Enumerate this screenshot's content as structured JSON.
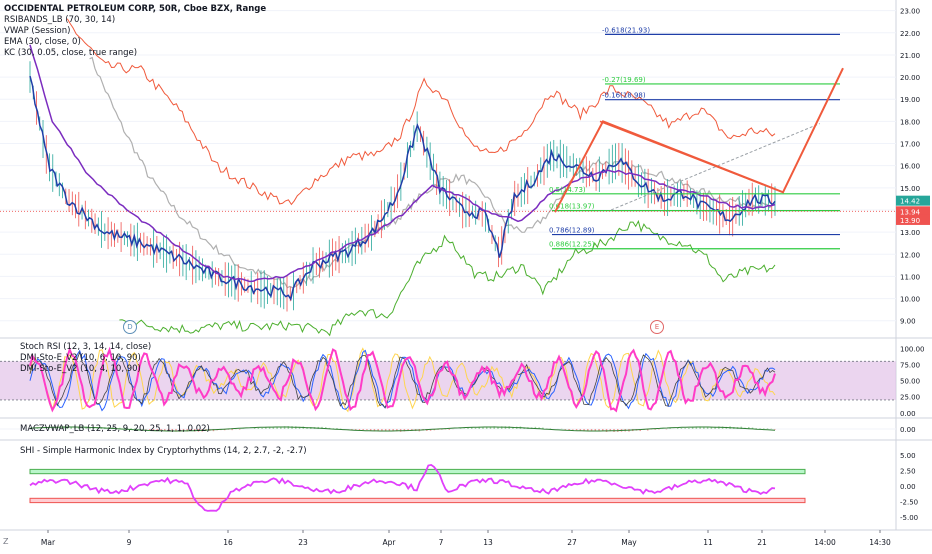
{
  "legend": {
    "title": "OCCIDENTAL PETROLEUM CORP, 50R, Cboe BZX, Range",
    "indicators": [
      "RSIBANDS_LB (70, 30, 14)",
      "VWAP (Session)",
      "EMA (30, close, 0)",
      "KC (30, 0.05, close, true range)"
    ]
  },
  "markers": [
    "D",
    "E"
  ],
  "axis_corner": "Z",
  "colors": {
    "price": "#1f3ea8",
    "up": "#26a69a",
    "down": "#ef5350",
    "rsi_upper": "#f05a3c",
    "rsi_lower": "#4caf2f",
    "vwap": "#7b2cbf",
    "ema": "#b0b0b0",
    "pattern": "#f05a3c",
    "fib_blue": "#1f3ea8",
    "fib_green": "#2ecc40",
    "stoch_k": "#ff3cc7",
    "stoch_d": "#2962ff",
    "dmi": "#ffd54f",
    "band_fill": "#e1bee7",
    "shi": "#e040fb"
  },
  "price_label_last": "14.42",
  "price_label_mid": "13.94",
  "price_label_low": "13.90",
  "main_chart": {
    "type": "line",
    "title": "OCCIDENTAL PETROLEUM CORP, 50R, Cboe BZX, Range",
    "yticks": [
      "23.00",
      "22.00",
      "21.00",
      "20.00",
      "19.00",
      "18.00",
      "17.00",
      "16.00",
      "15.00",
      "14.00",
      "13.00",
      "12.00",
      "11.00",
      "10.00",
      "9.00"
    ],
    "y_range": [
      8.4,
      23.3
    ],
    "price_path": [
      [
        0,
        20.0
      ],
      [
        0.025,
        16.0
      ],
      [
        0.05,
        14.5
      ],
      [
        0.1,
        13.0
      ],
      [
        0.15,
        12.5
      ],
      [
        0.2,
        11.8
      ],
      [
        0.25,
        11.0
      ],
      [
        0.3,
        10.5
      ],
      [
        0.35,
        10.2
      ],
      [
        0.38,
        11.5
      ],
      [
        0.43,
        12.2
      ],
      [
        0.46,
        13.0
      ],
      [
        0.49,
        14.5
      ],
      [
        0.5,
        15.5
      ],
      [
        0.52,
        17.8
      ],
      [
        0.55,
        15.0
      ],
      [
        0.58,
        14.0
      ],
      [
        0.61,
        13.8
      ],
      [
        0.63,
        12.0
      ],
      [
        0.65,
        14.5
      ],
      [
        0.68,
        15.5
      ],
      [
        0.7,
        16.5
      ],
      [
        0.73,
        16.0
      ],
      [
        0.76,
        15.5
      ],
      [
        0.79,
        16.3
      ],
      [
        0.82,
        15.2
      ],
      [
        0.85,
        14.5
      ],
      [
        0.88,
        14.8
      ],
      [
        0.9,
        14.2
      ],
      [
        0.94,
        13.6
      ],
      [
        0.97,
        14.5
      ],
      [
        1.0,
        14.4
      ]
    ],
    "rsi_upper_path": [
      [
        0.05,
        22.5
      ],
      [
        0.1,
        20.5
      ],
      [
        0.15,
        20.3
      ],
      [
        0.2,
        18.5
      ],
      [
        0.25,
        16.0
      ],
      [
        0.3,
        15.0
      ],
      [
        0.35,
        14.2
      ],
      [
        0.38,
        15.3
      ],
      [
        0.43,
        16.4
      ],
      [
        0.47,
        16.5
      ],
      [
        0.5,
        17.5
      ],
      [
        0.53,
        19.8
      ],
      [
        0.56,
        19.0
      ],
      [
        0.59,
        17.0
      ],
      [
        0.62,
        16.4
      ],
      [
        0.66,
        17.4
      ],
      [
        0.7,
        19.4
      ],
      [
        0.74,
        18.3
      ],
      [
        0.78,
        19.5
      ],
      [
        0.82,
        18.9
      ],
      [
        0.86,
        17.8
      ],
      [
        0.9,
        18.6
      ],
      [
        0.94,
        17.2
      ],
      [
        0.97,
        17.6
      ],
      [
        1.0,
        17.4
      ]
    ],
    "rsi_lower_path": [
      [
        0.12,
        9.0
      ],
      [
        0.18,
        8.7
      ],
      [
        0.22,
        8.6
      ],
      [
        0.26,
        8.8
      ],
      [
        0.3,
        8.7
      ],
      [
        0.35,
        8.8
      ],
      [
        0.4,
        8.5
      ],
      [
        0.44,
        9.5
      ],
      [
        0.48,
        9.2
      ],
      [
        0.52,
        11.5
      ],
      [
        0.56,
        12.8
      ],
      [
        0.6,
        11.0
      ],
      [
        0.63,
        11.0
      ],
      [
        0.66,
        11.5
      ],
      [
        0.69,
        10.3
      ],
      [
        0.73,
        12.0
      ],
      [
        0.77,
        12.5
      ],
      [
        0.81,
        13.5
      ],
      [
        0.84,
        12.8
      ],
      [
        0.88,
        12.5
      ],
      [
        0.91,
        11.8
      ],
      [
        0.93,
        10.8
      ],
      [
        0.96,
        11.2
      ],
      [
        1.0,
        11.4
      ]
    ],
    "vwap_path": [
      [
        0,
        21.5
      ],
      [
        0.03,
        18.0
      ],
      [
        0.08,
        15.5
      ],
      [
        0.13,
        14.0
      ],
      [
        0.18,
        12.8
      ],
      [
        0.22,
        11.8
      ],
      [
        0.26,
        11.0
      ],
      [
        0.3,
        10.8
      ],
      [
        0.34,
        11.0
      ],
      [
        0.38,
        11.6
      ],
      [
        0.42,
        12.3
      ],
      [
        0.46,
        12.9
      ],
      [
        0.5,
        13.8
      ],
      [
        0.54,
        15.1
      ],
      [
        0.58,
        14.6
      ],
      [
        0.62,
        13.8
      ],
      [
        0.66,
        13.5
      ],
      [
        0.7,
        14.8
      ],
      [
        0.74,
        15.4
      ],
      [
        0.78,
        15.8
      ],
      [
        0.82,
        15.5
      ],
      [
        0.86,
        15.0
      ],
      [
        0.9,
        14.7
      ],
      [
        0.94,
        14.2
      ],
      [
        0.97,
        14.1
      ],
      [
        1.0,
        14.2
      ]
    ],
    "ema_path": [
      [
        0.08,
        21.0
      ],
      [
        0.12,
        18.0
      ],
      [
        0.16,
        15.5
      ],
      [
        0.2,
        13.8
      ],
      [
        0.24,
        12.5
      ],
      [
        0.28,
        11.5
      ],
      [
        0.32,
        11.0
      ],
      [
        0.35,
        10.5
      ],
      [
        0.38,
        11.0
      ],
      [
        0.42,
        12.0
      ],
      [
        0.45,
        12.8
      ],
      [
        0.49,
        13.5
      ],
      [
        0.52,
        14.5
      ],
      [
        0.55,
        15.3
      ],
      [
        0.58,
        15.5
      ],
      [
        0.61,
        14.7
      ],
      [
        0.64,
        13.3
      ],
      [
        0.67,
        13.0
      ],
      [
        0.7,
        14.0
      ],
      [
        0.73,
        15.5
      ],
      [
        0.76,
        16.2
      ],
      [
        0.8,
        16.0
      ],
      [
        0.84,
        15.7
      ],
      [
        0.88,
        15.1
      ],
      [
        0.92,
        14.6
      ],
      [
        0.96,
        14.3
      ],
      [
        1.0,
        14.1
      ]
    ],
    "pattern_line": [
      [
        15.8,
        13.9
      ],
      [
        18.0,
        18.0
      ],
      [
        14.8,
        14.2
      ],
      [
        20.0,
        20.4
      ]
    ],
    "fib_levels": [
      {
        "label": "-0.618(21.93)",
        "value": 21.93,
        "color": "fib_blue"
      },
      {
        "label": "-0.27(19.69)",
        "value": 19.69,
        "color": "fib_green"
      },
      {
        "label": "-0.16(18.98)",
        "value": 18.98,
        "color": "fib_blue"
      },
      {
        "label": "0.5(14.73)",
        "value": 14.73,
        "color": "fib_green"
      },
      {
        "label": "0.618(13.97)",
        "value": 13.97,
        "color": "fib_green"
      },
      {
        "label": "0.786(12.89)",
        "value": 12.89,
        "color": "fib_blue"
      },
      {
        "label": "0.886(12.25)",
        "value": 12.25,
        "color": "fib_green"
      }
    ]
  },
  "stoch_pane": {
    "title": "Stoch RSI (12, 3, 14, 14, close)",
    "lines": [
      "DMI-Sto-E_V2 (10, 6, 10, 90)",
      "DMI-Sto-E_V2 (10, 4, 10, 90)"
    ],
    "yticks": [
      "100.00",
      "75.00",
      "50.00",
      "25.00",
      "0.00"
    ],
    "y_range": [
      -5,
      110
    ],
    "band": [
      20,
      80
    ]
  },
  "macd_pane": {
    "title": "MACZVWAP_LB (12, 25, 9, 20, 25, 1, 1, 0.02)",
    "yticks": [
      "0.00"
    ]
  },
  "shi_pane": {
    "title": "SHI - Simple Harmonic Index by Cryptorhythms (14, 2, 2.7, -2, -2.7)",
    "yticks": [
      "5.00",
      "2.50",
      "0.00",
      "-2.50",
      "-5.00"
    ],
    "y_range": [
      -6.5,
      6.5
    ],
    "upper_band": [
      2.0,
      2.7
    ],
    "lower_band": [
      -2.0,
      -2.7
    ]
  },
  "xaxis": {
    "labels": [
      "Mar",
      "9",
      "16",
      "23",
      "Apr",
      "7",
      "13",
      "27",
      "May",
      "11",
      "21",
      "14:00",
      "14:30"
    ]
  }
}
